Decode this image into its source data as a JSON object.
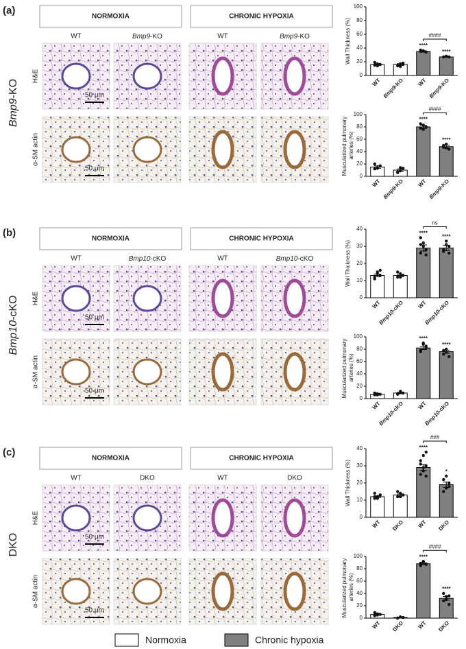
{
  "legend": [
    {
      "name": "Normoxia",
      "color": "#ffffff"
    },
    {
      "name": "Chronic hypoxia",
      "color": "#808080"
    }
  ],
  "panels": [
    {
      "label": "(a)",
      "model": "Bmp9-KO",
      "headers": [
        "NORMOXIA",
        "CHRONIC HYPOXIA"
      ],
      "columns": [
        "WT",
        "Bmp9-KO",
        "WT",
        "Bmp9-KO"
      ],
      "rows": [
        "H&E",
        "α-SM actin"
      ],
      "scale_bar": "50 μm"
    },
    {
      "label": "(b)",
      "model": "Bmp10-cKO",
      "headers": [
        "NORMOXIA",
        "CHRONIC HYPOXIA"
      ],
      "columns": [
        "WT",
        "Bmp10-cKO",
        "WT",
        "Bmp10-cKO"
      ],
      "rows": [
        "H&E",
        "α-SM actin"
      ],
      "scale_bar": "50 μm"
    },
    {
      "label": "(c)",
      "model": "DKO",
      "headers": [
        "NORMOXIA",
        "CHRONIC HYPOXIA"
      ],
      "columns": [
        "WT",
        "DKO",
        "WT",
        "DKO"
      ],
      "rows": [
        "H&E",
        "α-SM actin"
      ],
      "scale_bar": "50 μm"
    }
  ],
  "chart_data": [
    {
      "type": "bar",
      "y_label": [
        "Wall Thickness (%)"
      ],
      "categories": [
        "WT",
        "Bmp9-KO",
        "WT",
        "Bmp9-KO"
      ],
      "values": [
        16,
        16,
        35,
        27
      ],
      "errors": [
        1,
        1.2,
        1,
        0.6
      ],
      "colors": [
        "#ffffff",
        "#ffffff",
        "#808080",
        "#808080"
      ],
      "points": [
        [
          15,
          17,
          16,
          19,
          14,
          16
        ],
        [
          14,
          17,
          18,
          15,
          13,
          16
        ],
        [
          37,
          36,
          34,
          35
        ],
        [
          27,
          28,
          27,
          27,
          28
        ]
      ],
      "markers": [
        null,
        null,
        "****",
        "****"
      ],
      "bracket": "####",
      "ylim": [
        0,
        100
      ],
      "yticks": [
        0,
        20,
        40,
        60,
        80,
        100
      ]
    },
    {
      "type": "bar",
      "y_label": [
        "Muscularized pulmonary ",
        "arteries (%)"
      ],
      "categories": [
        "WT",
        "Bmp9-KO",
        "WT",
        "Bmp9-KO"
      ],
      "values": [
        15,
        10,
        80,
        48
      ],
      "errors": [
        2,
        2,
        2.5,
        2.5
      ],
      "colors": [
        "#ffffff",
        "#ffffff",
        "#808080",
        "#808080"
      ],
      "points": [
        [
          12,
          14,
          17,
          20,
          13
        ],
        [
          7,
          9,
          13,
          6,
          14
        ],
        [
          78,
          83,
          80,
          85,
          76
        ],
        [
          47,
          52,
          44,
          50,
          46
        ]
      ],
      "markers": [
        null,
        null,
        "****",
        "****"
      ],
      "bracket": "####",
      "ylim": [
        0,
        100
      ],
      "yticks": [
        0,
        20,
        40,
        60,
        80,
        100
      ]
    },
    {
      "type": "bar",
      "y_label": [
        "Wall Thickness (%)"
      ],
      "categories": [
        "WT",
        "Bmp10-cKO",
        "WT",
        "Bmp10-cKO"
      ],
      "values": [
        13,
        13,
        29,
        29
      ],
      "errors": [
        0.8,
        0.7,
        1.8,
        1.5
      ],
      "colors": [
        "#ffffff",
        "#ffffff",
        "#808080",
        "#808080"
      ],
      "points": [
        [
          12,
          15,
          13,
          11,
          14,
          16
        ],
        [
          12,
          14,
          13,
          15,
          12
        ],
        [
          26,
          32,
          28,
          35,
          30,
          25,
          31
        ],
        [
          28,
          33,
          30,
          27,
          31,
          26
        ]
      ],
      "markers": [
        null,
        null,
        "****",
        "****"
      ],
      "bracket": "ns",
      "ylim": [
        0,
        40
      ],
      "yticks": [
        0,
        10,
        20,
        30,
        40
      ]
    },
    {
      "type": "bar",
      "y_label": [
        "Muscularized pulmonary ",
        "arteries (%)"
      ],
      "categories": [
        "WT",
        "Bmp10-cKO",
        "WT",
        "Bmp10-cKO"
      ],
      "values": [
        7,
        9,
        82,
        76
      ],
      "errors": [
        0.6,
        1.2,
        2.5,
        2.5
      ],
      "colors": [
        "#ffffff",
        "#ffffff",
        "#808080",
        "#808080"
      ],
      "points": [
        [
          6,
          8,
          7,
          9,
          6
        ],
        [
          7,
          12,
          9,
          8,
          10
        ],
        [
          78,
          88,
          85,
          76,
          90,
          82
        ],
        [
          72,
          80,
          68,
          78,
          75
        ]
      ],
      "markers": [
        null,
        null,
        "****",
        "****"
      ],
      "ylim": [
        0,
        100
      ],
      "yticks": [
        0,
        20,
        40,
        60,
        80,
        100
      ]
    },
    {
      "type": "bar",
      "y_label": [
        "Wall Thickness (%)"
      ],
      "categories": [
        "WT",
        "DKO",
        "WT",
        "DKO"
      ],
      "values": [
        12,
        13,
        29,
        19
      ],
      "errors": [
        0.5,
        0.6,
        1.7,
        1.5
      ],
      "colors": [
        "#ffffff",
        "#ffffff",
        "#808080",
        "#808080"
      ],
      "points": [
        [
          11,
          12,
          13,
          12,
          11,
          13,
          14,
          12
        ],
        [
          12,
          14,
          13,
          15,
          12
        ],
        [
          25,
          36,
          30,
          33,
          27,
          24,
          31,
          29,
          38
        ],
        [
          22,
          17,
          20,
          15,
          24,
          18
        ]
      ],
      "markers": [
        null,
        null,
        "****",
        "*"
      ],
      "bracket": "###",
      "ylim": [
        0,
        40
      ],
      "yticks": [
        0,
        10,
        20,
        30,
        40
      ]
    },
    {
      "type": "bar",
      "y_label": [
        "Muscularized pulmonary ",
        "arteries (%)"
      ],
      "categories": [
        "WT",
        "DKO",
        "WT",
        "DKO"
      ],
      "values": [
        6,
        1,
        88,
        32
      ],
      "errors": [
        1,
        0.5,
        1,
        3
      ],
      "colors": [
        "#ffffff",
        "#ffffff",
        "#808080",
        "#808080"
      ],
      "points": [
        [
          4,
          7,
          6,
          9,
          5
        ],
        [
          0,
          2,
          1,
          0
        ],
        [
          86,
          90,
          88,
          85,
          92,
          87,
          89
        ],
        [
          28,
          35,
          22,
          40,
          30,
          36
        ]
      ],
      "markers": [
        null,
        null,
        "****",
        "****"
      ],
      "bracket": "####",
      "ylim": [
        0,
        100
      ],
      "yticks": [
        0,
        20,
        40,
        60,
        80,
        100
      ]
    }
  ]
}
